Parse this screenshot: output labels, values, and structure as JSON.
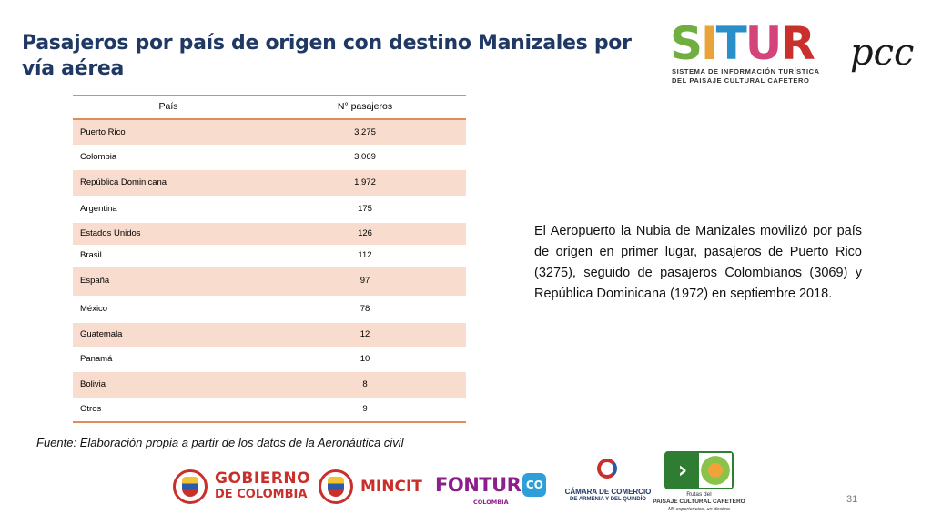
{
  "slide": {
    "title": "Pasajeros por país de origen con destino Manizales por vía aérea",
    "description": "El Aeropuerto la Nubia de Manizales movilizó por país de origen en primer lugar, pasajeros de Puerto Rico (3275), seguido de pasajeros Colombianos (3069) y República Dominicana (1972) en septiembre 2018.",
    "source": "Fuente: Elaboración propia a partir de los datos de la Aeronáutica civil",
    "page_number": "31"
  },
  "situr_logo": {
    "letters": [
      "S",
      "I",
      "T",
      "U",
      "R"
    ],
    "letter_colors": [
      "#6fae3f",
      "#e8a33a",
      "#2a8fc9",
      "#d4447a",
      "#c9302c"
    ],
    "suffix": "pcc",
    "subtitle_line1": "SISTEMA DE INFORMACIÓN TURÍSTICA",
    "subtitle_line2": "DEL PAISAJE CULTURAL CAFETERO"
  },
  "table": {
    "headers": [
      "País",
      "N° pasajeros"
    ],
    "rows": [
      {
        "country": "Puerto Rico",
        "passengers": "3.275"
      },
      {
        "country": "Colombia",
        "passengers": "3.069"
      },
      {
        "country": "República Dominicana",
        "passengers": "1.972"
      },
      {
        "country": "Argentina",
        "passengers": "175"
      },
      {
        "country": "Estados Unidos",
        "passengers": "126"
      },
      {
        "country": "Brasil",
        "passengers": "112"
      },
      {
        "country": "España",
        "passengers": "97"
      },
      {
        "country": "México",
        "passengers": "78"
      },
      {
        "country": "Guatemala",
        "passengers": "12"
      },
      {
        "country": "Panamá",
        "passengers": "10"
      },
      {
        "country": "Bolivia",
        "passengers": "8"
      },
      {
        "country": "Otros",
        "passengers": "9"
      }
    ]
  },
  "footer_logos": {
    "gobierno_line1": "GOBIERNO",
    "gobierno_line2": "DE COLOMBIA",
    "mincit": "MINCIT",
    "fontur": "FONTUR",
    "fontur_badge": "CO",
    "fontur_sub": "COLOMBIA",
    "camara_line1": "CÁMARA DE COMERCIO",
    "camara_line2": "DE ARMENIA Y DEL QUINDÍO",
    "rutas_line1": "Rutas del",
    "rutas_line2": "PAISAJE CULTURAL CAFETERO",
    "rutas_line3": "Mil experiencias, un destino"
  }
}
